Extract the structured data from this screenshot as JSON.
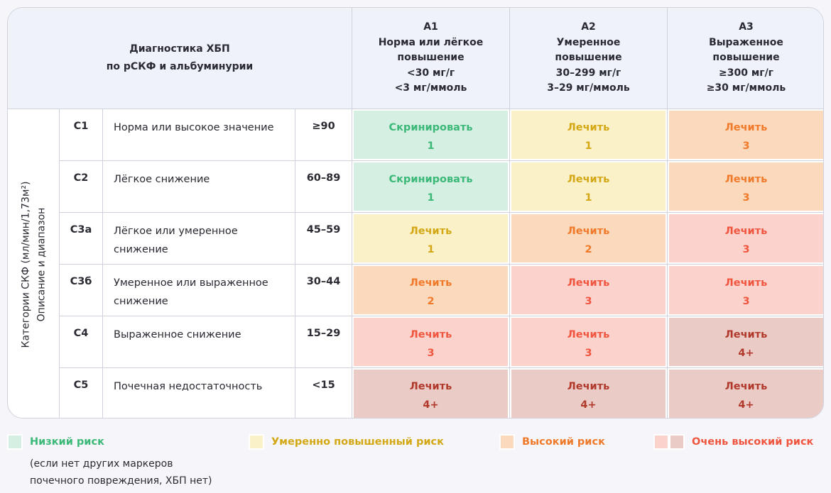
{
  "colors": {
    "low": {
      "bg": "#d5efe2",
      "fg": "#3cb878"
    },
    "moderate": {
      "bg": "#fbf1c9",
      "fg": "#d4a815"
    },
    "high": {
      "bg": "#fbd9bd",
      "fg": "#f07a2a"
    },
    "very_high": {
      "bg": "#fbd3cc",
      "fg": "#f0553f"
    },
    "very_high_plus": {
      "bg": "#ebcbc6",
      "fg": "#b0392b"
    }
  },
  "header": {
    "title_line1": "Диагностика ХБП",
    "title_line2": "по рСКФ и альбуминурии",
    "columns": [
      {
        "code": "A1",
        "lines": [
          "Норма или лёгкое",
          "повышение",
          "<30 мг/г",
          "<3 мг/ммоль"
        ]
      },
      {
        "code": "A2",
        "lines": [
          "Умеренное",
          "повышение",
          "30–299 мг/г",
          "3–29 мг/ммоль"
        ]
      },
      {
        "code": "A3",
        "lines": [
          "Выраженное",
          "повышение",
          "≥300 мг/г",
          "≥30 мг/ммоль"
        ]
      }
    ]
  },
  "side_label": {
    "line1": "Категории СКФ (мл/мин/1,73м²)",
    "line2": "Описание и диапазон"
  },
  "rows": [
    {
      "code": "C1",
      "description": "Норма или высокое значение",
      "range": "≥90",
      "cells": [
        {
          "action": "Скринировать",
          "value": "1",
          "level": "low"
        },
        {
          "action": "Лечить",
          "value": "1",
          "level": "moderate"
        },
        {
          "action": "Лечить",
          "value": "3",
          "level": "high"
        }
      ]
    },
    {
      "code": "C2",
      "description": "Лёгкое снижение",
      "range": "60–89",
      "cells": [
        {
          "action": "Скринировать",
          "value": "1",
          "level": "low"
        },
        {
          "action": "Лечить",
          "value": "1",
          "level": "moderate"
        },
        {
          "action": "Лечить",
          "value": "3",
          "level": "high"
        }
      ]
    },
    {
      "code": "C3a",
      "description": "Лёгкое или умеренное снижение",
      "range": "45–59",
      "cells": [
        {
          "action": "Лечить",
          "value": "1",
          "level": "moderate"
        },
        {
          "action": "Лечить",
          "value": "2",
          "level": "high"
        },
        {
          "action": "Лечить",
          "value": "3",
          "level": "very_high"
        }
      ]
    },
    {
      "code": "C3б",
      "description": "Умеренное или выраженное снижение",
      "range": "30–44",
      "cells": [
        {
          "action": "Лечить",
          "value": "2",
          "level": "high"
        },
        {
          "action": "Лечить",
          "value": "3",
          "level": "very_high"
        },
        {
          "action": "Лечить",
          "value": "3",
          "level": "very_high"
        }
      ]
    },
    {
      "code": "C4",
      "description": "Выраженное снижение",
      "range": "15–29",
      "cells": [
        {
          "action": "Лечить",
          "value": "3",
          "level": "very_high"
        },
        {
          "action": "Лечить",
          "value": "3",
          "level": "very_high"
        },
        {
          "action": "Лечить",
          "value": "4+",
          "level": "very_high_plus"
        }
      ]
    },
    {
      "code": "C5",
      "description": "Почечная недостаточность",
      "range": "<15",
      "cells": [
        {
          "action": "Лечить",
          "value": "4+",
          "level": "very_high_plus"
        },
        {
          "action": "Лечить",
          "value": "4+",
          "level": "very_high_plus"
        },
        {
          "action": "Лечить",
          "value": "4+",
          "level": "very_high_plus"
        }
      ]
    }
  ],
  "legend": {
    "low": "Низкий риск",
    "low_note_line1": "(если нет других маркеров",
    "low_note_line2": "почечного повреждения, ХБП нет)",
    "moderate": "Умеренно повышенный риск",
    "high": "Высокий риск",
    "very_high": "Очень высокий риск"
  }
}
